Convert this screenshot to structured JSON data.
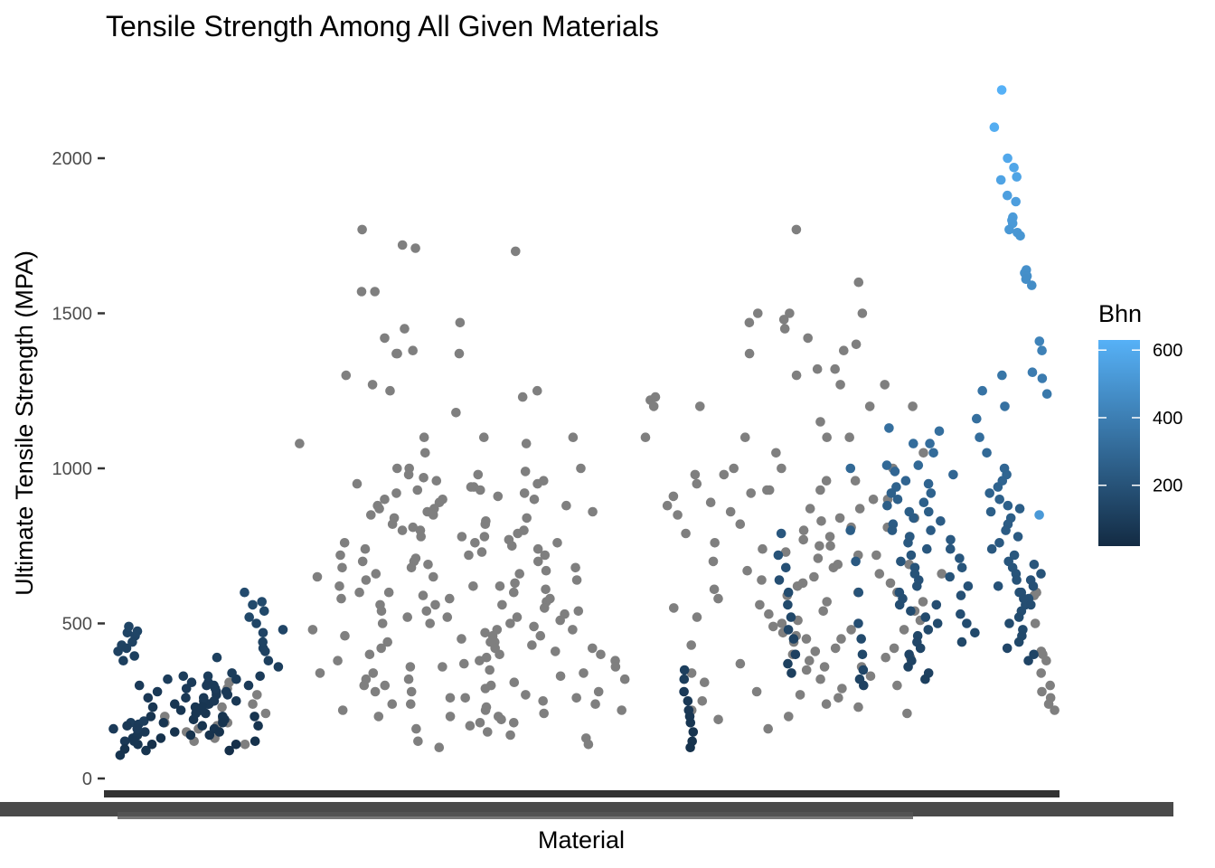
{
  "chart_data": {
    "type": "scatter",
    "title": "Tensile Strength Among All Given Materials",
    "xlabel": "Material",
    "ylabel": "Ultimate Tensile Strength (MPA)",
    "ylim": [
      0,
      2200
    ],
    "yticks": [
      0,
      500,
      1000,
      1500,
      2000
    ],
    "x_tick_labels_note": "illegible overlapping material names",
    "grid": false,
    "legend": {
      "title": "Bhn",
      "position": "right",
      "type": "colorbar",
      "min": 20,
      "max": 630,
      "ticks": [
        200,
        400,
        600
      ],
      "low_color": "#132b43",
      "high_color": "#56b1f7",
      "na_color": "#7f7f7f"
    },
    "series": [
      {
        "x_range": [
          0.0,
          0.05
        ],
        "y": [
          75,
          120,
          160,
          180,
          95,
          130,
          170,
          140,
          110,
          175,
          185,
          150,
          120,
          90,
          160
        ],
        "bhn": [
          60,
          80,
          90,
          100,
          55,
          70,
          85,
          75,
          65,
          95,
          100,
          80,
          70,
          60,
          90
        ]
      },
      {
        "x_range": [
          0.01,
          0.035
        ],
        "y": [
          410,
          470,
          490,
          430,
          380,
          420,
          395,
          460,
          475,
          440
        ],
        "bhn": [
          120,
          130,
          140,
          125,
          110,
          120,
          115,
          135,
          140,
          130
        ]
      },
      {
        "x_range": [
          0.03,
          0.19
        ],
        "y": [
          260,
          300,
          320,
          240,
          200,
          180,
          150,
          130,
          110,
          230,
          280,
          310,
          330,
          210,
          170,
          140,
          250,
          290,
          220,
          190,
          160,
          270,
          300,
          240,
          200,
          260,
          220,
          180,
          150,
          240,
          280,
          310,
          270,
          230,
          190,
          210,
          250,
          290,
          330,
          320,
          300,
          260,
          230,
          200,
          170,
          140,
          120,
          90,
          110,
          380,
          420,
          390,
          360,
          340,
          330,
          300,
          280,
          250
        ],
        "bhn": [
          80,
          90,
          100,
          75,
          65,
          60,
          55,
          50,
          45,
          70,
          85,
          95,
          100,
          65,
          60,
          55,
          75,
          90,
          70,
          65,
          60,
          80,
          90,
          75,
          65,
          80,
          70,
          60,
          55,
          75,
          85,
          95,
          80,
          70,
          65,
          70,
          80,
          90,
          100,
          95,
          90,
          80,
          70,
          65,
          60,
          55,
          50,
          40,
          45,
          110,
          120,
          115,
          105,
          100,
          95,
          90,
          85,
          80
        ]
      },
      {
        "x_range": [
          0.03,
          0.19
        ],
        "y": [
          140,
          160,
          180,
          200,
          220,
          120,
          150,
          170,
          230,
          250,
          290,
          310,
          110,
          130,
          180,
          240,
          270,
          190,
          210
        ],
        "bhn": null
      },
      {
        "x_range": [
          0.13,
          0.19
        ],
        "y": [
          520,
          560,
          600,
          570,
          540,
          500,
          470,
          440,
          410,
          480
        ],
        "bhn": [
          150,
          160,
          165,
          160,
          150,
          140,
          135,
          130,
          125,
          140
        ]
      },
      {
        "x_range": [
          0.18,
          0.56
        ],
        "y": [
          1300,
          1380,
          1370,
          1080,
          950,
          930,
          900,
          870,
          850,
          800,
          780,
          760,
          720,
          700,
          680,
          650,
          620,
          600,
          580,
          560,
          540,
          520,
          500,
          480,
          460,
          440,
          420,
          400,
          380,
          360,
          340,
          320,
          300,
          280,
          260,
          240,
          220,
          200,
          1770,
          1570,
          1420,
          1270,
          1720,
          1710,
          1570,
          1470,
          1370,
          1180,
          1100,
          1050,
          1000,
          980,
          960,
          940,
          920,
          900,
          880,
          860,
          840,
          820,
          800,
          780,
          760,
          740,
          720,
          700,
          680,
          660,
          640,
          620,
          600,
          580,
          560,
          540,
          520,
          500,
          480,
          460,
          440,
          420,
          400,
          380,
          360,
          340,
          320,
          300,
          280,
          260,
          240,
          220,
          200,
          180,
          160,
          140,
          120,
          100,
          1700,
          1450,
          1370,
          1250,
          1230,
          1100,
          1080,
          1000,
          990,
          970,
          950,
          930,
          910,
          890,
          870,
          850,
          830,
          810,
          790,
          770,
          750,
          730,
          710,
          690,
          670,
          650,
          630,
          610,
          590,
          570,
          550,
          530,
          510,
          490,
          470,
          450,
          430,
          410,
          390,
          370,
          350,
          330,
          310,
          290,
          270,
          250,
          230,
          210,
          190,
          170,
          150,
          130,
          110,
          1250,
          1100,
          1000,
          980,
          960,
          940,
          920,
          900,
          880,
          860,
          840,
          820,
          800,
          780,
          760,
          740,
          720,
          700,
          680,
          660,
          640,
          620,
          600,
          580,
          560,
          540,
          520,
          500,
          480,
          460,
          440,
          420,
          400,
          380,
          360,
          340,
          320,
          300,
          280,
          260,
          240,
          220,
          200,
          180
        ],
        "bhn": null
      },
      {
        "x_range": [
          0.56,
          0.9
        ],
        "y": [
          1220,
          1230,
          1200,
          1100,
          980,
          930,
          910,
          880,
          850,
          820,
          790,
          760,
          730,
          700,
          670,
          640,
          610,
          580,
          550,
          520,
          490,
          460,
          430,
          400,
          370,
          340,
          310,
          280,
          250,
          220,
          190,
          160,
          1500,
          1370,
          1320,
          1200,
          1100,
          1000,
          980,
          950,
          920,
          890,
          860,
          830,
          800,
          770,
          740,
          710,
          680,
          650,
          620,
          590,
          560,
          530,
          500,
          470,
          440,
          410,
          380,
          350,
          320,
          290,
          260,
          230,
          200,
          1770,
          1600,
          1500,
          1480,
          1470,
          1450,
          1400,
          1320,
          1270,
          1200,
          1100,
          1050,
          1000,
          960,
          930,
          900,
          870,
          840,
          810,
          780,
          750,
          720,
          690,
          660,
          630,
          600,
          570,
          540,
          510,
          480,
          450,
          420,
          390,
          360,
          330,
          300,
          270,
          240,
          210,
          1500,
          1420,
          1380,
          1300,
          1270,
          1200,
          1150,
          1100,
          1050,
          1000,
          960,
          930,
          900,
          870,
          840,
          810,
          780,
          750,
          720,
          690,
          660,
          630,
          600,
          570,
          540,
          510,
          480,
          450,
          420,
          390,
          360
        ],
        "bhn": null
      },
      {
        "x_range": [
          0.6,
          0.62
        ],
        "y": [
          350,
          320,
          280,
          250,
          220,
          200,
          180,
          150,
          120,
          100
        ],
        "bhn": [
          110,
          100,
          90,
          85,
          80,
          75,
          70,
          60,
          55,
          50
        ]
      },
      {
        "x_range": [
          0.7,
          0.73
        ],
        "y": [
          790,
          720,
          680,
          640,
          600,
          560,
          520,
          480,
          450,
          400,
          370,
          340
        ],
        "bhn": [
          220,
          200,
          190,
          180,
          170,
          160,
          150,
          140,
          130,
          120,
          115,
          110
        ]
      },
      {
        "x_range": [
          0.78,
          0.8
        ],
        "y": [
          1000,
          800,
          700,
          600,
          500,
          450,
          400,
          350,
          320,
          300
        ],
        "bhn": [
          300,
          250,
          230,
          200,
          180,
          160,
          150,
          140,
          130,
          120
        ]
      },
      {
        "x_range": [
          0.8,
          0.92
        ],
        "y": [
          1130,
          1010,
          990,
          960,
          940,
          920,
          900,
          880,
          860,
          840,
          820,
          800,
          780,
          760,
          740,
          720,
          700,
          680,
          660,
          640,
          620,
          600,
          580,
          560,
          540,
          520,
          500,
          480,
          460,
          440,
          420,
          400,
          380,
          360,
          340,
          320,
          1080,
          1120,
          1080,
          1050,
          1010,
          980,
          950,
          920,
          890,
          860,
          830,
          800,
          770,
          740,
          710,
          680,
          650,
          620,
          590,
          560,
          530,
          500,
          470,
          440
        ],
        "bhn": [
          330,
          300,
          290,
          280,
          270,
          265,
          260,
          255,
          250,
          245,
          240,
          235,
          230,
          225,
          220,
          215,
          210,
          205,
          200,
          195,
          190,
          185,
          180,
          175,
          170,
          165,
          160,
          155,
          150,
          145,
          140,
          135,
          130,
          125,
          120,
          115,
          320,
          330,
          320,
          310,
          300,
          290,
          280,
          270,
          260,
          250,
          245,
          240,
          230,
          220,
          215,
          210,
          200,
          195,
          190,
          180,
          175,
          170,
          160,
          150
        ]
      },
      {
        "x_range": [
          0.91,
          0.99
        ],
        "y": [
          1300,
          1250,
          1200,
          1160,
          1100,
          1050,
          1000,
          980,
          960,
          940,
          920,
          900,
          880,
          860,
          840,
          820,
          800,
          780,
          760,
          740,
          720,
          700,
          680,
          660,
          640,
          620,
          600,
          580,
          560,
          540,
          520,
          500,
          480,
          460,
          440,
          420,
          400,
          380,
          850,
          870,
          690,
          660,
          640,
          620,
          600,
          580,
          560
        ],
        "bhn": [
          360,
          350,
          340,
          330,
          320,
          300,
          290,
          285,
          280,
          275,
          270,
          265,
          260,
          255,
          250,
          245,
          240,
          235,
          230,
          225,
          220,
          215,
          210,
          205,
          200,
          195,
          190,
          185,
          180,
          175,
          170,
          165,
          160,
          155,
          150,
          145,
          140,
          135,
          520,
          250,
          210,
          200,
          195,
          190,
          185,
          180,
          175
        ]
      },
      {
        "x_range": [
          0.93,
          0.99
        ],
        "y": [
          2220,
          2100,
          2000,
          1970,
          1940,
          1930,
          1880,
          1860,
          1810,
          1800,
          1790,
          1770,
          1760,
          1750,
          1640,
          1630,
          1620,
          1610,
          1590,
          1410,
          1380,
          1310,
          1290,
          1240
        ],
        "bhn": [
          630,
          610,
          590,
          580,
          570,
          565,
          550,
          545,
          530,
          525,
          520,
          515,
          510,
          505,
          480,
          478,
          475,
          470,
          465,
          420,
          410,
          390,
          385,
          370
        ]
      },
      {
        "x_range": [
          0.97,
          1.0
        ],
        "y": [
          600,
          590,
          500,
          410,
          400,
          380,
          340,
          300,
          280,
          260,
          240,
          220
        ],
        "bhn": null
      }
    ]
  }
}
